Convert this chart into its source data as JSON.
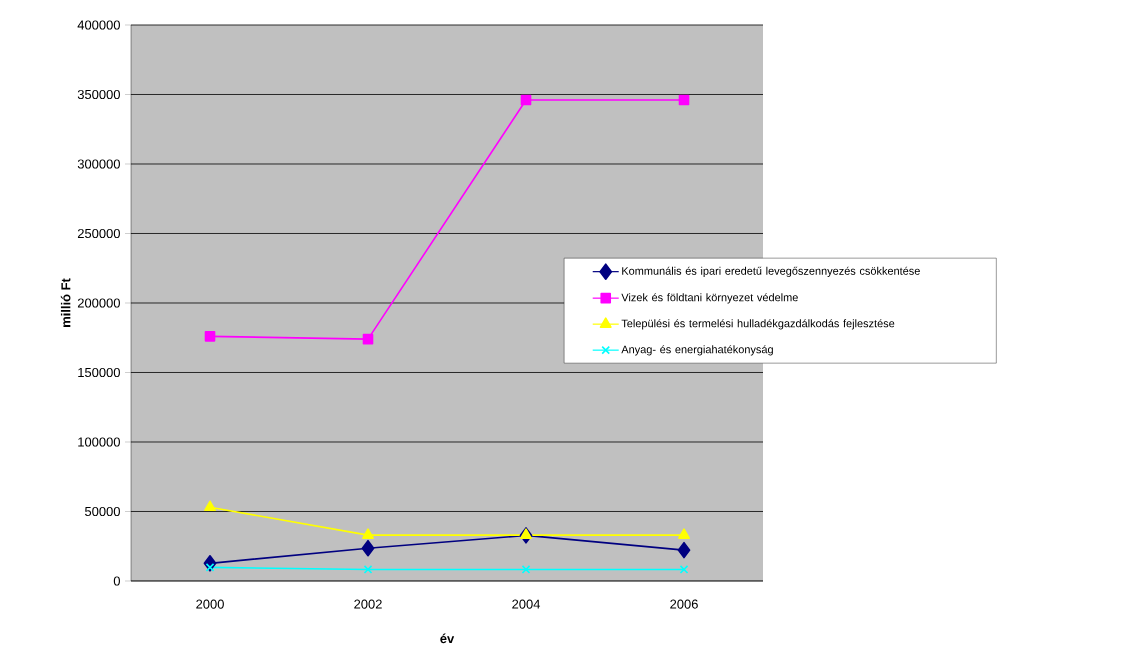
{
  "chart_data": {
    "type": "line",
    "xlabel": "év",
    "ylabel": "millió Ft",
    "categories": [
      "2000",
      "2002",
      "2004",
      "2006"
    ],
    "series": [
      {
        "name": "Kommunális és ipari eredetű levegőszennyezés csökkentése",
        "color": "#000080",
        "marker": "diamond",
        "values": [
          12700,
          23600,
          32800,
          22200
        ]
      },
      {
        "name": "Vizek és földtani környezet védelme",
        "color": "#ff00ff",
        "marker": "square",
        "values": [
          176000,
          174000,
          346000,
          346000
        ]
      },
      {
        "name": "Települési és termelési hulladékgazdálkodás fejlesztése",
        "color": "#ffff00",
        "marker": "triangle",
        "values": [
          53000,
          33000,
          33000,
          33000
        ]
      },
      {
        "name": "Anyag- és energiahatékonyság",
        "color": "#00ffff",
        "marker": "cross",
        "values": [
          9800,
          8300,
          8300,
          8300
        ]
      }
    ],
    "ylim": [
      0,
      400000
    ],
    "yticks": [
      0,
      50000,
      100000,
      150000,
      200000,
      250000,
      300000,
      350000,
      400000
    ],
    "grid": "y",
    "legend": "right",
    "line_style": "solid"
  }
}
